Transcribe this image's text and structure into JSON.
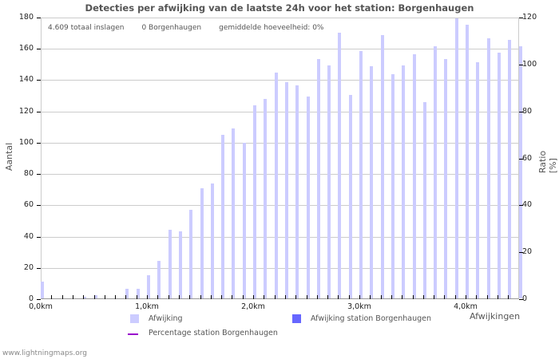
{
  "chart_data": {
    "type": "bar",
    "title": "Detecties per afwijking van de laatste 24h voor het station: Borgenhaugen",
    "xlabel": "Afwijkingen",
    "ylabel": "Aantal",
    "ylabel_right": "Ratio [%]",
    "ylim": [
      0,
      180
    ],
    "ylim_right": [
      0,
      120
    ],
    "yticks": [
      0,
      20,
      40,
      60,
      80,
      100,
      120,
      140,
      160,
      180
    ],
    "yticks_right": [
      0,
      20,
      40,
      60,
      80,
      100,
      120
    ],
    "xticks": [
      "0,0km",
      "1,0km",
      "2,0km",
      "3,0km",
      "4,0km"
    ],
    "grid": true,
    "legend_position": "bottom",
    "bar_step_km": 0.1,
    "series": [
      {
        "name": "Afwijking",
        "color": "#ccccff",
        "values": [
          11,
          0,
          0,
          0,
          1,
          2,
          0,
          0,
          6,
          6,
          15,
          24,
          44,
          43,
          57,
          71,
          74,
          105,
          109,
          100,
          124,
          128,
          145,
          139,
          137,
          130,
          154,
          150,
          171,
          131,
          159,
          149,
          169,
          144,
          150,
          157,
          126,
          162,
          154,
          180,
          176,
          152,
          167,
          158,
          166,
          162
        ]
      },
      {
        "name": "Afwijking station Borgenhaugen",
        "color": "#6666ff",
        "values": []
      },
      {
        "name": "Percentage station Borgenhaugen",
        "color": "#9900cc",
        "type": "line",
        "values": []
      }
    ]
  },
  "stats": {
    "total": "4.609 totaal inslagen",
    "station": "0 Borgenhaugen",
    "average": "gemiddelde hoeveelheid: 0%"
  },
  "legend": {
    "item1": "Afwijking",
    "item2": "Afwijking station Borgenhaugen",
    "item3": "Percentage station Borgenhaugen"
  },
  "footer": "www.lightningmaps.org"
}
